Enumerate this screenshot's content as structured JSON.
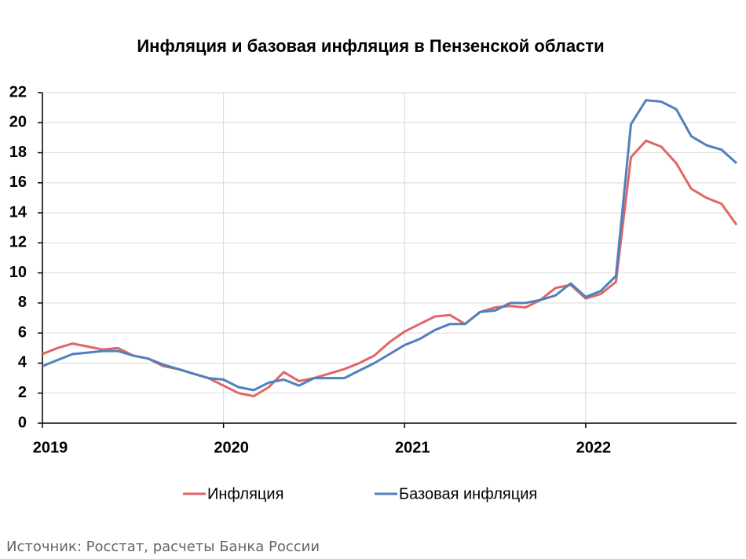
{
  "chart_data": {
    "type": "line",
    "title": "Инфляция и базовая инфляция в Пензенской области",
    "source": "Источник: Росстат, расчеты Банка России",
    "x": [
      2019,
      2019.083,
      2019.167,
      2019.25,
      2019.333,
      2019.417,
      2019.5,
      2019.583,
      2019.667,
      2019.75,
      2019.833,
      2019.917,
      2020,
      2020.083,
      2020.167,
      2020.25,
      2020.333,
      2020.417,
      2020.5,
      2020.583,
      2020.667,
      2020.75,
      2020.833,
      2020.917,
      2021,
      2021.083,
      2021.167,
      2021.25,
      2021.333,
      2021.417,
      2021.5,
      2021.583,
      2021.667,
      2021.75,
      2021.833,
      2021.917,
      2022,
      2022.083,
      2022.167,
      2022.25,
      2022.333,
      2022.417,
      2022.5,
      2022.583,
      2022.667,
      2022.75,
      2022.833
    ],
    "series": [
      {
        "name": "Инфляция",
        "color": "#e06666",
        "values": [
          4.6,
          5.0,
          5.3,
          5.1,
          4.9,
          5.0,
          4.5,
          4.3,
          3.8,
          3.6,
          3.3,
          3.0,
          2.5,
          2.0,
          1.8,
          2.4,
          3.4,
          2.8,
          3.0,
          3.3,
          3.6,
          4.0,
          4.5,
          5.4,
          6.1,
          6.6,
          7.1,
          7.2,
          6.6,
          7.4,
          7.7,
          7.8,
          7.7,
          8.2,
          9.0,
          9.2,
          8.3,
          8.6,
          9.4,
          17.7,
          18.8,
          18.4,
          17.3,
          15.6,
          15.0,
          14.6,
          13.2
        ]
      },
      {
        "name": "Базовая инфляция",
        "color": "#4f81bd",
        "values": [
          3.8,
          4.2,
          4.6,
          4.7,
          4.8,
          4.8,
          4.5,
          4.3,
          3.9,
          3.6,
          3.3,
          3.0,
          2.9,
          2.4,
          2.2,
          2.7,
          2.9,
          2.5,
          3.0,
          3.0,
          3.0,
          3.5,
          4.0,
          4.6,
          5.2,
          5.6,
          6.2,
          6.6,
          6.6,
          7.4,
          7.5,
          8.0,
          8.0,
          8.2,
          8.5,
          9.3,
          8.4,
          8.8,
          9.8,
          19.9,
          21.5,
          21.4,
          20.9,
          19.1,
          18.5,
          18.2,
          17.3
        ]
      }
    ],
    "xlim": [
      2019,
      2022.833
    ],
    "xticks": [
      2019,
      2020,
      2021,
      2022
    ],
    "ylim": [
      0,
      22
    ],
    "yticks": [
      0,
      2,
      4,
      6,
      8,
      10,
      12,
      14,
      16,
      18,
      20,
      22
    ],
    "grid": true
  }
}
